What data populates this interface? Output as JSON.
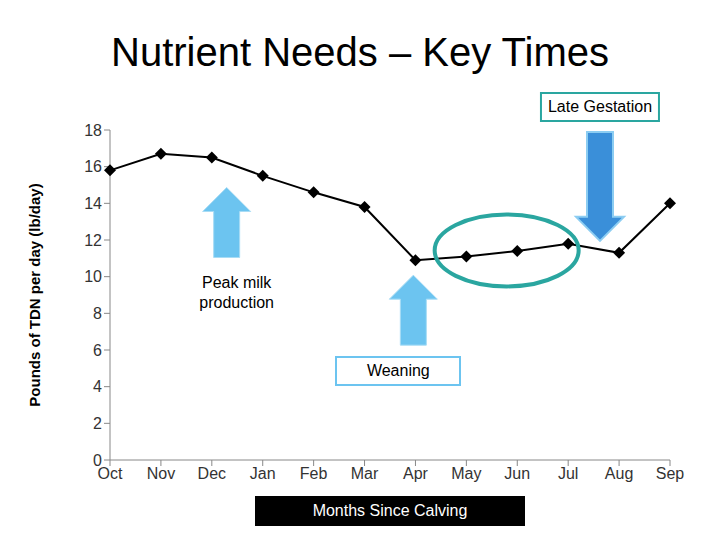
{
  "chart_data": {
    "type": "line",
    "title": "Nutrient Needs – Key Times",
    "x_label": "Months Since Calving",
    "y_label": "Pounds of TDN per day (lb/day)",
    "categories": [
      "Oct",
      "Nov",
      "Dec",
      "Jan",
      "Feb",
      "Mar",
      "Apr",
      "May",
      "Jun",
      "Jul",
      "Aug",
      "Sep"
    ],
    "values": [
      15.8,
      16.7,
      16.5,
      15.5,
      14.6,
      13.8,
      10.9,
      11.1,
      11.4,
      11.8,
      11.3,
      14.0
    ],
    "color": "#000000",
    "marker": "diamond",
    "ylim": [
      0,
      18
    ],
    "yticks": [
      0,
      2,
      4,
      6,
      8,
      10,
      12,
      14,
      16,
      18
    ],
    "grid": false,
    "annotations": [
      {
        "text": "Peak milk production",
        "category": "Dec"
      },
      {
        "text": "Weaning",
        "category": "Apr"
      },
      {
        "text": "Late Gestation",
        "category": "Aug"
      },
      {
        "text": "",
        "category": "May"
      }
    ]
  }
}
